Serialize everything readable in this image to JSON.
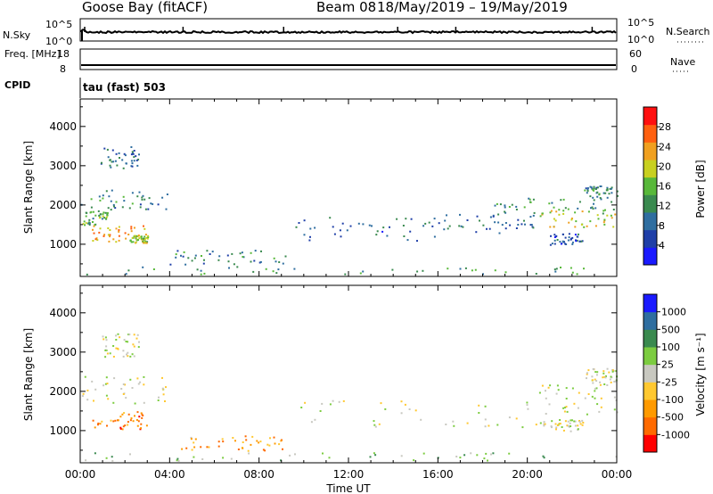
{
  "header": {
    "station": "Goose Bay (fitACF)",
    "beam": "Beam 08",
    "dates": "18/May/2019 – 19/May/2019"
  },
  "colors": {
    "power": [
      "#1a1aff",
      "#1f3fa8",
      "#2f6ea0",
      "#3a8a4f",
      "#58b83a",
      "#c8d020",
      "#f0a020",
      "#ff6010",
      "#ff1010"
    ],
    "velocity": [
      "#ff0000",
      "#ff6a00",
      "#ff9a00",
      "#ffc830",
      "#c8c8c0",
      "#7ccc40",
      "#3a8a4f",
      "#2f6ea0",
      "#1a1aff"
    ]
  },
  "chart_data": [
    {
      "type": "line",
      "name": "nsky-nsearch-panel",
      "left_axis": {
        "label": "N.Sky",
        "ticks": [
          "10^5",
          "10^0"
        ]
      },
      "right_axis": {
        "label": "N.Search",
        "ticks": [
          "10^5",
          "10^0"
        ]
      },
      "approx_level": 10000
    },
    {
      "type": "line",
      "name": "freq-nave-panel",
      "left_axis": {
        "label": "Freq. [MHz]",
        "ticks": [
          "18",
          "8"
        ]
      },
      "right_axis": {
        "label": "Nave",
        "ticks": [
          "60",
          "0"
        ]
      },
      "freq_mhz": 10
    },
    {
      "type": "text",
      "name": "cpid-panel",
      "left_label": "CPID",
      "value_text": "tau (fast) 503"
    },
    {
      "type": "heatmap",
      "name": "power-panel",
      "xlabel": "",
      "ylabel": "Slant Range [km]",
      "xlim_hours": [
        0,
        24
      ],
      "ylim_km": [
        180,
        4700
      ],
      "yticks": [
        1000,
        2000,
        3000,
        4000
      ],
      "colorbar": {
        "label": "Power [dB]",
        "range": [
          0,
          32
        ],
        "ticks": [
          4,
          8,
          12,
          16,
          20,
          24,
          28
        ]
      },
      "regions": [
        {
          "t0": 0.9,
          "t1": 2.6,
          "r0": 2900,
          "r1": 3500,
          "level": 0.28
        },
        {
          "t0": 0.0,
          "t1": 3.9,
          "r0": 1900,
          "r1": 2400,
          "level": 0.32
        },
        {
          "t0": 0.1,
          "t1": 1.2,
          "r0": 1500,
          "r1": 1900,
          "level": 0.45
        },
        {
          "t0": 0.5,
          "t1": 3.0,
          "r0": 1050,
          "r1": 1500,
          "level": 0.75
        },
        {
          "t0": 2.2,
          "t1": 3.0,
          "r0": 1050,
          "r1": 1250,
          "level": 0.55
        },
        {
          "t0": 0.0,
          "t1": 24.0,
          "r0": 250,
          "r1": 450,
          "level": 0.4
        },
        {
          "t0": 4.0,
          "t1": 9.5,
          "r0": 500,
          "r1": 900,
          "level": 0.35
        },
        {
          "t0": 9.5,
          "t1": 16.0,
          "r0": 1100,
          "r1": 1700,
          "level": 0.25
        },
        {
          "t0": 16.0,
          "t1": 20.5,
          "r0": 1300,
          "r1": 1800,
          "level": 0.28
        },
        {
          "t0": 18.5,
          "t1": 24.0,
          "r0": 1800,
          "r1": 2200,
          "level": 0.4
        },
        {
          "t0": 20.5,
          "t1": 24.0,
          "r0": 1450,
          "r1": 1900,
          "level": 0.62
        },
        {
          "t0": 22.5,
          "t1": 24.0,
          "r0": 2200,
          "r1": 2500,
          "level": 0.35
        },
        {
          "t0": 21.0,
          "t1": 22.5,
          "r0": 1000,
          "r1": 1300,
          "level": 0.22
        }
      ]
    },
    {
      "type": "heatmap",
      "name": "velocity-panel",
      "xlabel": "Time UT",
      "ylabel": "Slant Range [km]",
      "xlim_hours": [
        0,
        24
      ],
      "xticks": [
        "00:00",
        "04:00",
        "08:00",
        "12:00",
        "16:00",
        "20:00",
        "00:00"
      ],
      "ylim_km": [
        180,
        4700
      ],
      "yticks": [
        1000,
        2000,
        3000,
        4000
      ],
      "colorbar": {
        "label": "Velocity [m s⁻¹]",
        "ticks": [
          "1000",
          "500",
          "100",
          "25",
          "-25",
          "-100",
          "-500",
          "-1000"
        ]
      },
      "regions": [
        {
          "t0": 0.9,
          "t1": 2.6,
          "r0": 2900,
          "r1": 3500,
          "level": 0.52
        },
        {
          "t0": 0.0,
          "t1": 3.9,
          "r0": 1700,
          "r1": 2400,
          "level": 0.5
        },
        {
          "t0": 0.5,
          "t1": 3.0,
          "r0": 1050,
          "r1": 1500,
          "level": 0.22
        },
        {
          "t0": 4.5,
          "t1": 9.5,
          "r0": 500,
          "r1": 900,
          "level": 0.3
        },
        {
          "t0": 0.0,
          "t1": 24.0,
          "r0": 250,
          "r1": 450,
          "level": 0.6
        },
        {
          "t0": 9.5,
          "t1": 20.5,
          "r0": 1100,
          "r1": 1800,
          "level": 0.48
        },
        {
          "t0": 20.5,
          "t1": 24.0,
          "r0": 1400,
          "r1": 2200,
          "level": 0.5
        },
        {
          "t0": 22.5,
          "t1": 24.0,
          "r0": 2200,
          "r1": 2600,
          "level": 0.5
        },
        {
          "t0": 20.5,
          "t1": 22.5,
          "r0": 1000,
          "r1": 1300,
          "level": 0.5
        }
      ]
    }
  ]
}
